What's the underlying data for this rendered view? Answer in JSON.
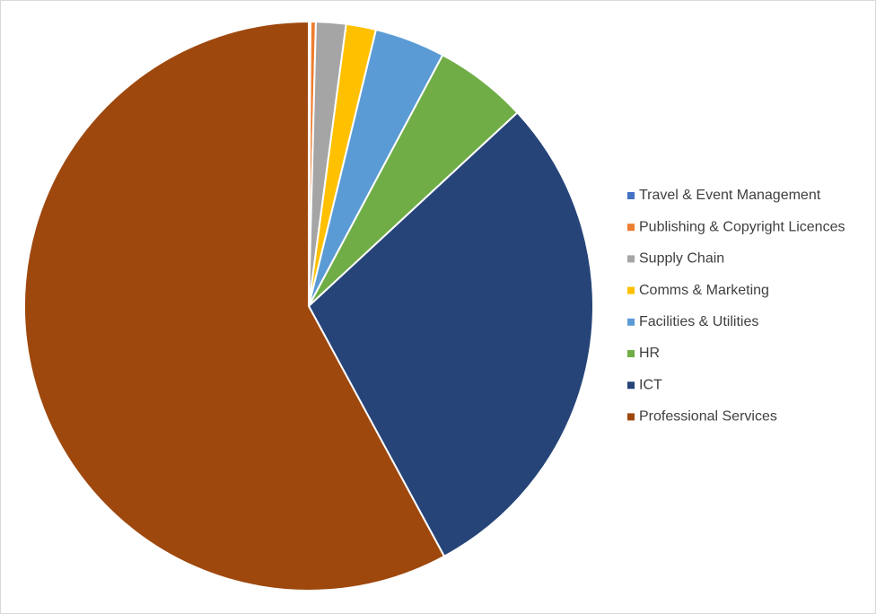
{
  "chart_data": {
    "type": "pie",
    "categories": [
      "Travel & Event Management",
      "Publishing & Copyright Licences",
      "Supply Chain",
      "Comms & Marketing",
      "Facilities & Utilities",
      "HR",
      "ICT",
      "Professional Services"
    ],
    "values": [
      0.1,
      0.3,
      1.7,
      1.7,
      4.0,
      5.3,
      29.0,
      57.9
    ],
    "colors": [
      "#4472c4",
      "#ed7d31",
      "#a5a5a5",
      "#ffc000",
      "#5b9bd5",
      "#70ad47",
      "#264478",
      "#9e480e"
    ],
    "legend": "right"
  }
}
